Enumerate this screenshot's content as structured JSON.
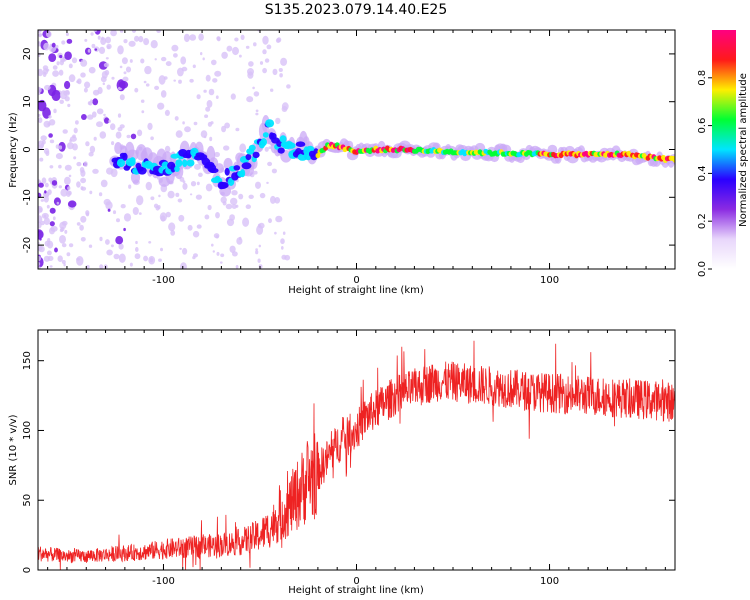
{
  "title": "S135.2023.079.14.40.E25",
  "colors": {
    "snr_line": "#ee2222",
    "frame": "#000000"
  },
  "chart_data": [
    {
      "type": "heatmap",
      "xlabel": "Height of straight line (km)",
      "ylabel": "Frequency (Hz)",
      "xlim": [
        -165,
        165
      ],
      "ylim": [
        -25,
        25
      ],
      "xticks": [
        {
          "value": -100,
          "label": "-100"
        },
        {
          "value": 0,
          "label": "0"
        },
        {
          "value": 100,
          "label": "100"
        }
      ],
      "yticks": [
        {
          "value": -20,
          "label": "-20"
        },
        {
          "value": -10,
          "label": "-10"
        },
        {
          "value": 0,
          "label": "0"
        },
        {
          "value": 10,
          "label": "10"
        },
        {
          "value": 20,
          "label": "20"
        }
      ],
      "colorbar": {
        "label": "Normalized spectral amplitude",
        "range": [
          0,
          1
        ],
        "ticks": [
          {
            "value": 0.0,
            "label": "0.0"
          },
          {
            "value": 0.2,
            "label": "0.2"
          },
          {
            "value": 0.4,
            "label": "0.4"
          },
          {
            "value": 0.6,
            "label": "0.6"
          },
          {
            "value": 0.8,
            "label": "0.8"
          }
        ],
        "colormap": [
          "#ffffff",
          "#e8d6fb",
          "#8b2be2",
          "#2a00ff",
          "#00e5ff",
          "#00ff33",
          "#ffee00",
          "#ff1a1a",
          "#ff0080"
        ]
      },
      "ridge": [
        {
          "x": -120,
          "f": -3
        },
        {
          "x": -110,
          "f": -3.5
        },
        {
          "x": -100,
          "f": -4
        },
        {
          "x": -90,
          "f": -2
        },
        {
          "x": -80,
          "f": -1
        },
        {
          "x": -70,
          "f": -7
        },
        {
          "x": -60,
          "f": -4
        },
        {
          "x": -50,
          "f": 1
        },
        {
          "x": -45,
          "f": 5
        },
        {
          "x": -40,
          "f": 1
        },
        {
          "x": -30,
          "f": 0
        },
        {
          "x": -20,
          "f": -1
        },
        {
          "x": -15,
          "f": 0.8
        },
        {
          "x": -10,
          "f": 0.8
        },
        {
          "x": 0,
          "f": -0.5
        },
        {
          "x": 10,
          "f": 0
        },
        {
          "x": 25,
          "f": 0
        },
        {
          "x": 50,
          "f": -0.5
        },
        {
          "x": 80,
          "f": -0.8
        },
        {
          "x": 100,
          "f": -1
        },
        {
          "x": 120,
          "f": -1
        },
        {
          "x": 140,
          "f": -1
        },
        {
          "x": 150,
          "f": -1.5
        },
        {
          "x": 160,
          "f": -2
        },
        {
          "x": 165,
          "f": -2
        }
      ]
    },
    {
      "type": "line",
      "xlabel": "Height of straight line (km)",
      "ylabel": "SNR (10 * v/v)",
      "xlim": [
        -165,
        165
      ],
      "ylim": [
        0,
        172
      ],
      "xticks": [
        {
          "value": -100,
          "label": "-100"
        },
        {
          "value": 0,
          "label": "0"
        },
        {
          "value": 100,
          "label": "100"
        }
      ],
      "yticks": [
        {
          "value": 0,
          "label": "0"
        },
        {
          "value": 50,
          "label": "50"
        },
        {
          "value": 100,
          "label": "100"
        },
        {
          "value": 150,
          "label": "150"
        }
      ],
      "series": [
        {
          "x": [
            -165,
            -150,
            -140,
            -130,
            -120,
            -110,
            -100,
            -90,
            -80,
            -70,
            -60,
            -50,
            -45,
            -40,
            -35,
            -30,
            -25,
            -20,
            -15,
            -10,
            -5,
            0,
            5,
            10,
            15,
            20,
            30,
            40,
            50,
            60,
            70,
            80,
            90,
            100,
            110,
            120,
            130,
            140,
            150,
            160,
            165
          ],
          "y": [
            12,
            10,
            10,
            11,
            12,
            13,
            15,
            16,
            17,
            18,
            20,
            25,
            30,
            38,
            45,
            55,
            65,
            70,
            80,
            90,
            95,
            100,
            110,
            115,
            120,
            125,
            130,
            135,
            135,
            133,
            132,
            130,
            128,
            127,
            126,
            125,
            124,
            123,
            122,
            121,
            120
          ]
        }
      ]
    }
  ]
}
